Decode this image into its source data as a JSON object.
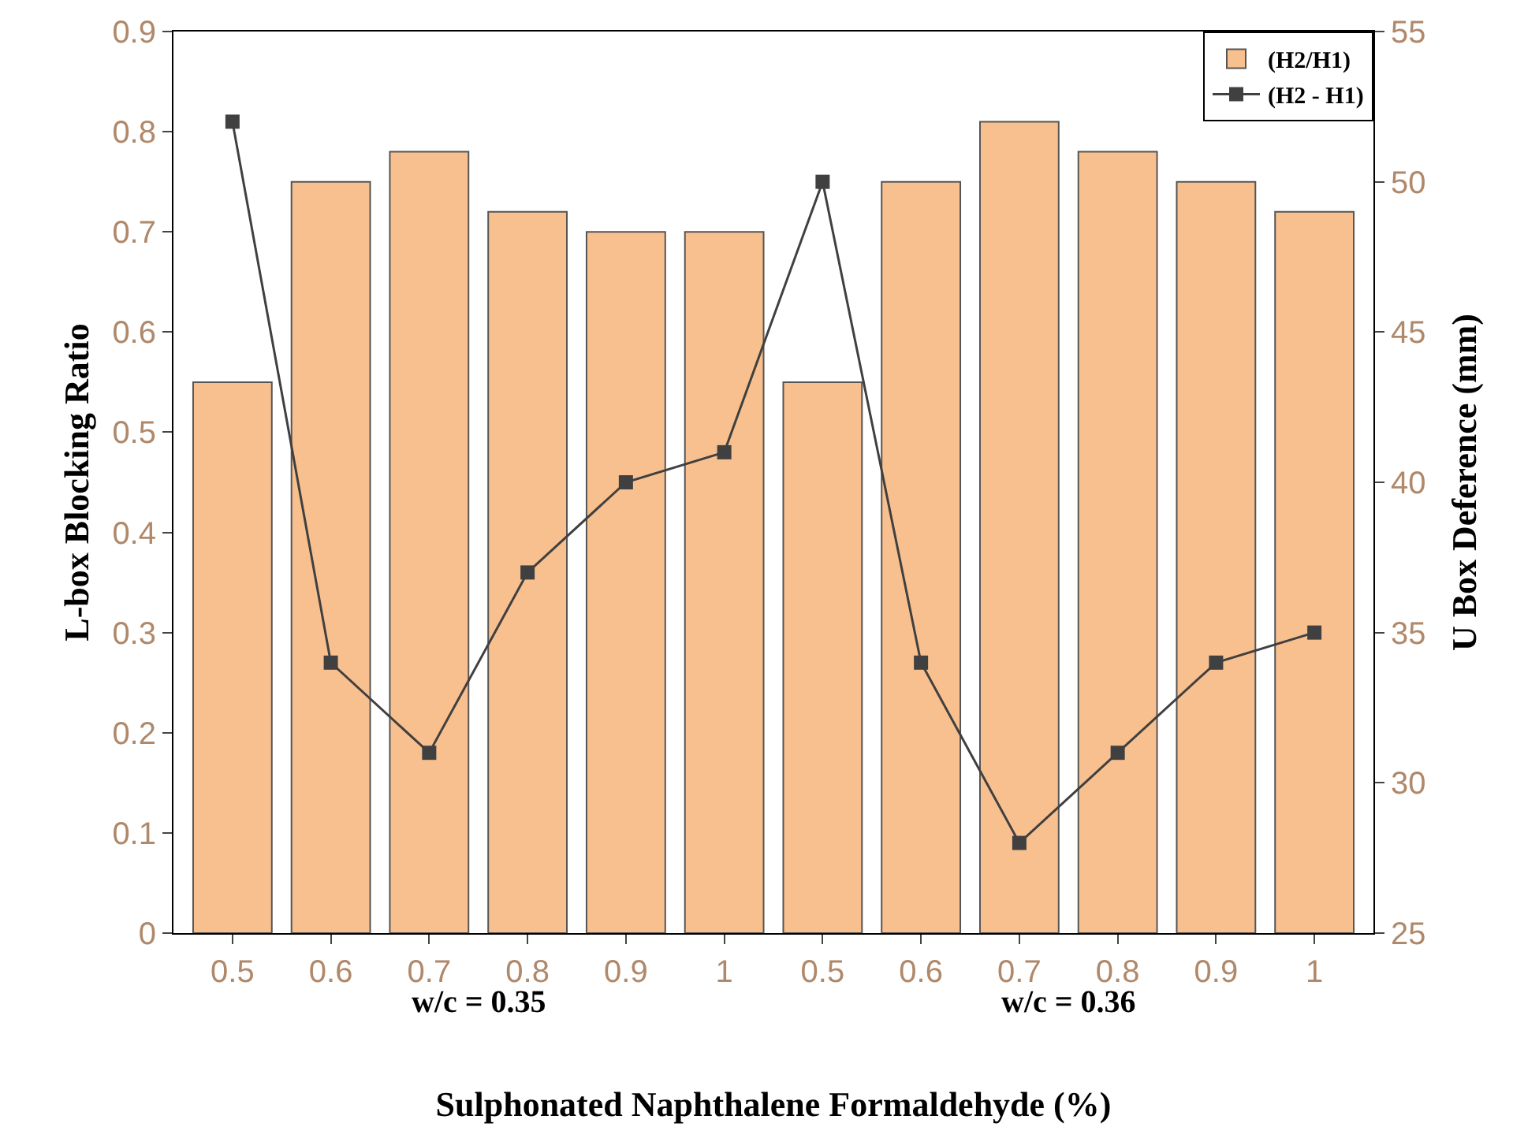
{
  "chart_data": {
    "type": "bar",
    "xlabel": "Sulphonated Naphthalene Formaldehyde (%)",
    "ylabel": "L-box Blocking Ratio",
    "y2label": "U Box Deference (mm)",
    "categories": [
      "0.5",
      "0.6",
      "0.7",
      "0.8",
      "0.9",
      "1",
      "0.5",
      "0.6",
      "0.7",
      "0.8",
      "0.9",
      "1"
    ],
    "series": [
      {
        "name": "(H2/H1)",
        "color": "#f9c08f",
        "values": [
          0.55,
          0.75,
          0.78,
          0.72,
          0.7,
          0.7,
          0.55,
          0.75,
          0.81,
          0.78,
          0.75,
          0.72
        ]
      },
      {
        "name": "(H2 - H1)",
        "type": "line",
        "axis": "y2",
        "color": "#404040",
        "marker": "square",
        "line_style": "solid",
        "values": [
          52,
          34,
          31,
          37,
          40,
          41,
          50,
          34,
          28,
          31,
          34,
          35
        ]
      }
    ],
    "ylim": [
      0,
      0.9
    ],
    "yticks": [
      0,
      0.1,
      0.2,
      0.3,
      0.4,
      0.5,
      0.6,
      0.7,
      0.8,
      0.9
    ],
    "y2lim": [
      25,
      55
    ],
    "y2ticks": [
      25,
      30,
      35,
      40,
      45,
      50,
      55
    ],
    "annotations": [
      "w/c = 0.35",
      "w/c = 0.36"
    ],
    "grid": false,
    "legend": "top right"
  }
}
